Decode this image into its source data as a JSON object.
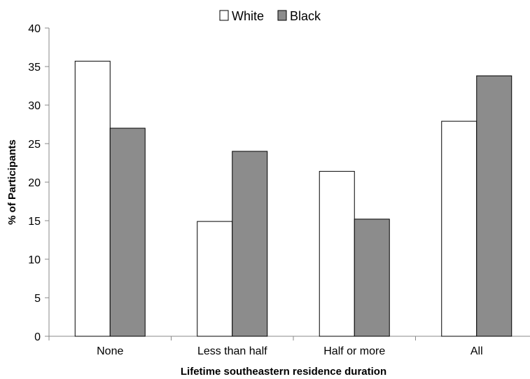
{
  "chart_data": {
    "type": "bar",
    "categories": [
      "None",
      "Less than half",
      "Half or more",
      "All"
    ],
    "series": [
      {
        "name": "White",
        "values": [
          35.7,
          14.9,
          21.4,
          27.9
        ],
        "color": "#ffffff"
      },
      {
        "name": "Black",
        "values": [
          27.0,
          24.0,
          15.2,
          33.8
        ],
        "color": "#8c8c8c"
      }
    ],
    "xlabel": "Lifetime southeastern residence duration",
    "ylabel": "% of Participants",
    "ylim": [
      0,
      40
    ],
    "yticks": [
      0,
      5,
      10,
      15,
      20,
      25,
      30,
      35,
      40
    ],
    "grid": false,
    "legend_position": "top-center",
    "bar_stroke": "#000000"
  }
}
